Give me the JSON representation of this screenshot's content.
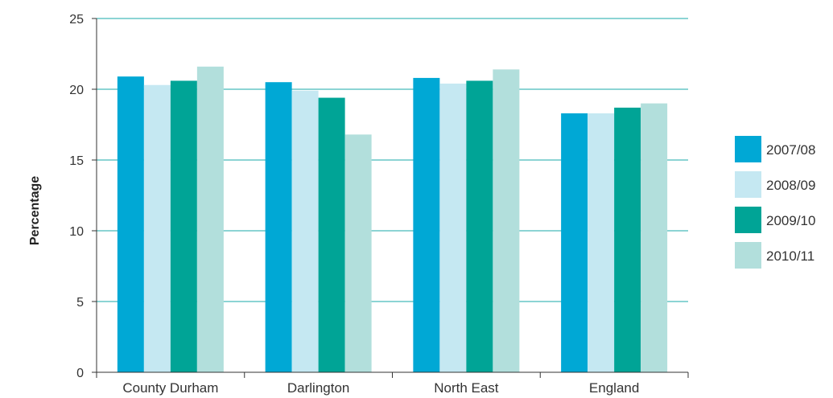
{
  "chart_data": {
    "type": "bar",
    "ylabel": "Percentage",
    "xlabel": "",
    "ylim": [
      0,
      25
    ],
    "yticks": [
      0,
      5,
      10,
      15,
      20,
      25
    ],
    "grid": true,
    "legend_position": "right",
    "categories": [
      "County Durham",
      "Darlington",
      "North East",
      "England"
    ],
    "series": [
      {
        "name": "2007/08",
        "color": "#00a8d5",
        "values": [
          20.9,
          20.5,
          20.8,
          18.3
        ]
      },
      {
        "name": "2008/09",
        "color": "#c5e8f2",
        "values": [
          20.3,
          19.9,
          20.4,
          18.3
        ]
      },
      {
        "name": "2009/10",
        "color": "#00a496",
        "values": [
          20.6,
          19.4,
          20.6,
          18.7
        ]
      },
      {
        "name": "2010/11",
        "color": "#b2dfdc",
        "values": [
          21.6,
          16.8,
          21.4,
          19.0
        ]
      }
    ],
    "gridline_color": "#1aa8a8",
    "axis_color": "#333333"
  }
}
